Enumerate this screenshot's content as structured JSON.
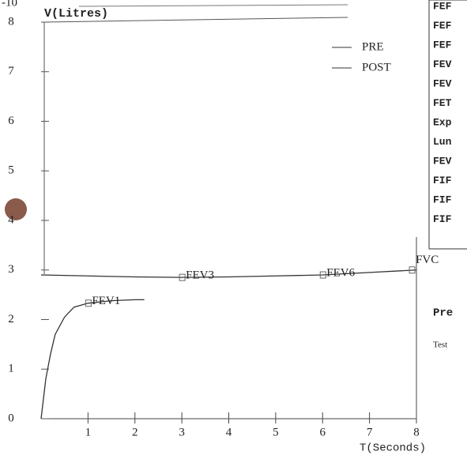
{
  "chart_data": {
    "type": "line",
    "top_fragment": "-10",
    "y_label": "V(Litres)",
    "x_label": "T(Seconds)",
    "xlim": [
      0,
      8
    ],
    "ylim": [
      0,
      8
    ],
    "xticks": [
      1,
      2,
      3,
      4,
      5,
      6,
      7,
      8
    ],
    "yticks": [
      0,
      1,
      2,
      3,
      4,
      5,
      6,
      7,
      8
    ],
    "legend": "upper right",
    "series": [
      {
        "name": "PRE",
        "color": "#333333",
        "x": [
          0,
          0.1,
          0.2,
          0.3,
          0.5,
          0.7,
          1,
          1.5,
          2,
          2.2
        ],
        "values": [
          0,
          0.8,
          1.3,
          1.7,
          2.05,
          2.25,
          2.33,
          2.38,
          2.4,
          2.4
        ]
      },
      {
        "name": "POST",
        "color": "#333333",
        "x": [
          0,
          1,
          2,
          3,
          4,
          5,
          6,
          7,
          8
        ],
        "values": [
          2.9,
          2.88,
          2.86,
          2.85,
          2.86,
          2.88,
          2.9,
          2.95,
          3.0
        ]
      }
    ],
    "annotations": [
      {
        "text": "FEV1",
        "x": 1,
        "y": 2.33
      },
      {
        "text": "FEV3",
        "x": 3,
        "y": 2.85
      },
      {
        "text": "FEV6",
        "x": 6,
        "y": 2.9
      },
      {
        "text": "FVC",
        "x": 7.9,
        "y": 3.0
      }
    ]
  },
  "side_panel": {
    "rows": [
      "FEF",
      "FEF",
      "FEF",
      "FEV",
      "FEV",
      "FET",
      "Exp",
      "Lun",
      "FEV",
      "FIF",
      "FIF",
      "FIF"
    ],
    "heading": "Pre",
    "note": "Test"
  }
}
